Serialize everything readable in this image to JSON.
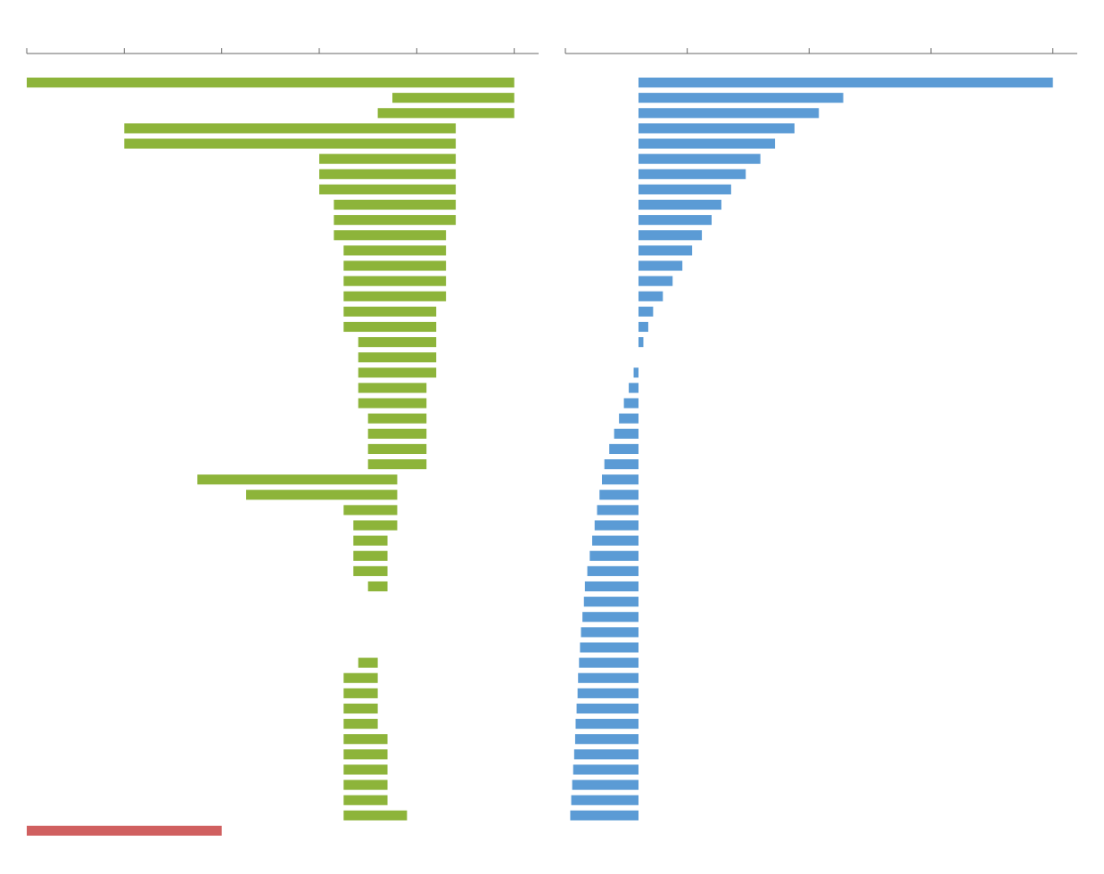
{
  "chart_data": [
    {
      "type": "bar",
      "orientation": "horizontal",
      "tick_labels": false,
      "grid": false,
      "categories": [
        null,
        null,
        null,
        null,
        null,
        null,
        null,
        null,
        null,
        null,
        null,
        null,
        null,
        null,
        null,
        null,
        null,
        null,
        null,
        null,
        null,
        null,
        null,
        null,
        null,
        null,
        null,
        null,
        null,
        null,
        null,
        null,
        null,
        null,
        null,
        null,
        null,
        null,
        null,
        null,
        null,
        null,
        null,
        null,
        null,
        null,
        null,
        null,
        null,
        null
      ],
      "starts": [
        0,
        75,
        72,
        20,
        20,
        60,
        60,
        60,
        63,
        63,
        63,
        65,
        65,
        65,
        65,
        65,
        65,
        68,
        68,
        68,
        68,
        68,
        70,
        70,
        70,
        70,
        35,
        45,
        65,
        67,
        67,
        67,
        67,
        70,
        70,
        70,
        70,
        70,
        72,
        72,
        72,
        72,
        72,
        74,
        74,
        74,
        74,
        74,
        78,
        0
      ],
      "values": [
        100,
        100,
        100,
        88,
        88,
        88,
        88,
        88,
        88,
        88,
        86,
        86,
        86,
        86,
        86,
        84,
        84,
        84,
        84,
        84,
        82,
        82,
        82,
        82,
        82,
        82,
        76,
        76,
        76,
        76,
        74,
        74,
        74,
        74,
        70,
        70,
        70,
        70,
        68,
        65,
        65,
        65,
        65,
        65,
        65,
        65,
        65,
        65,
        65,
        40
      ],
      "colors": [
        "#8DB43A",
        "#8DB43A",
        "#8DB43A",
        "#8DB43A",
        "#8DB43A",
        "#8DB43A",
        "#8DB43A",
        "#8DB43A",
        "#8DB43A",
        "#8DB43A",
        "#8DB43A",
        "#8DB43A",
        "#8DB43A",
        "#8DB43A",
        "#8DB43A",
        "#8DB43A",
        "#8DB43A",
        "#8DB43A",
        "#8DB43A",
        "#8DB43A",
        "#8DB43A",
        "#8DB43A",
        "#8DB43A",
        "#8DB43A",
        "#8DB43A",
        "#8DB43A",
        "#8DB43A",
        "#8DB43A",
        "#8DB43A",
        "#8DB43A",
        "#8DB43A",
        "#8DB43A",
        "#8DB43A",
        "#8DB43A",
        "#8DB43A",
        "#8DB43A",
        "#8DB43A",
        "#8DB43A",
        "#8DB43A",
        "#8DB43A",
        "#8DB43A",
        "#8DB43A",
        "#8DB43A",
        "#8DB43A",
        "#8DB43A",
        "#8DB43A",
        "#8DB43A",
        "#8DB43A",
        "#8DB43A",
        "#D06060"
      ],
      "xlim": [
        0,
        105
      ],
      "xticks": [
        0,
        20,
        40,
        60,
        80,
        100
      ]
    },
    {
      "type": "bar",
      "orientation": "horizontal",
      "tick_labels": false,
      "grid": false,
      "categories": [
        null,
        null,
        null,
        null,
        null,
        null,
        null,
        null,
        null,
        null,
        null,
        null,
        null,
        null,
        null,
        null,
        null,
        null,
        null,
        null,
        null,
        null,
        null,
        null,
        null,
        null,
        null,
        null,
        null,
        null,
        null,
        null,
        null,
        null,
        null,
        null,
        null,
        null,
        null,
        null,
        null,
        null,
        null,
        null,
        null,
        null,
        null,
        null,
        null,
        null
      ],
      "starts": [
        15,
        15,
        15,
        15,
        15,
        15,
        15,
        15,
        15,
        15,
        15,
        15,
        15,
        15,
        15,
        15,
        15,
        15,
        15,
        15,
        15,
        15,
        15,
        15,
        15,
        15,
        15,
        15,
        15,
        15,
        15,
        15,
        15,
        15,
        15,
        15,
        15,
        15,
        15,
        15,
        15,
        15,
        15,
        15,
        15,
        15,
        15,
        15,
        15,
        15
      ],
      "values": [
        100,
        57,
        52,
        47,
        43,
        40,
        37,
        34,
        32,
        30,
        28,
        26,
        24,
        22,
        20,
        18,
        17,
        16,
        15,
        14,
        13,
        12,
        11,
        10,
        9,
        8,
        7.5,
        7,
        6.5,
        6,
        5.5,
        5,
        4.5,
        4,
        3.8,
        3.5,
        3.2,
        3.0,
        2.8,
        2.6,
        2.5,
        2.3,
        2.1,
        2.0,
        1.8,
        1.6,
        1.4,
        1.2,
        1.0,
        15
      ],
      "colors": [
        "#5B9BD5",
        "#5B9BD5",
        "#5B9BD5",
        "#5B9BD5",
        "#5B9BD5",
        "#5B9BD5",
        "#5B9BD5",
        "#5B9BD5",
        "#5B9BD5",
        "#5B9BD5",
        "#5B9BD5",
        "#5B9BD5",
        "#5B9BD5",
        "#5B9BD5",
        "#5B9BD5",
        "#5B9BD5",
        "#5B9BD5",
        "#5B9BD5",
        "#5B9BD5",
        "#5B9BD5",
        "#5B9BD5",
        "#5B9BD5",
        "#5B9BD5",
        "#5B9BD5",
        "#5B9BD5",
        "#5B9BD5",
        "#5B9BD5",
        "#5B9BD5",
        "#5B9BD5",
        "#5B9BD5",
        "#5B9BD5",
        "#5B9BD5",
        "#5B9BD5",
        "#5B9BD5",
        "#5B9BD5",
        "#5B9BD5",
        "#5B9BD5",
        "#5B9BD5",
        "#5B9BD5",
        "#5B9BD5",
        "#5B9BD5",
        "#5B9BD5",
        "#5B9BD5",
        "#5B9BD5",
        "#5B9BD5",
        "#5B9BD5",
        "#5B9BD5",
        "#5B9BD5",
        "#5B9BD5",
        "#D06060"
      ],
      "xlim": [
        0,
        105
      ],
      "xticks": [
        0,
        25,
        50,
        75,
        100
      ]
    }
  ]
}
